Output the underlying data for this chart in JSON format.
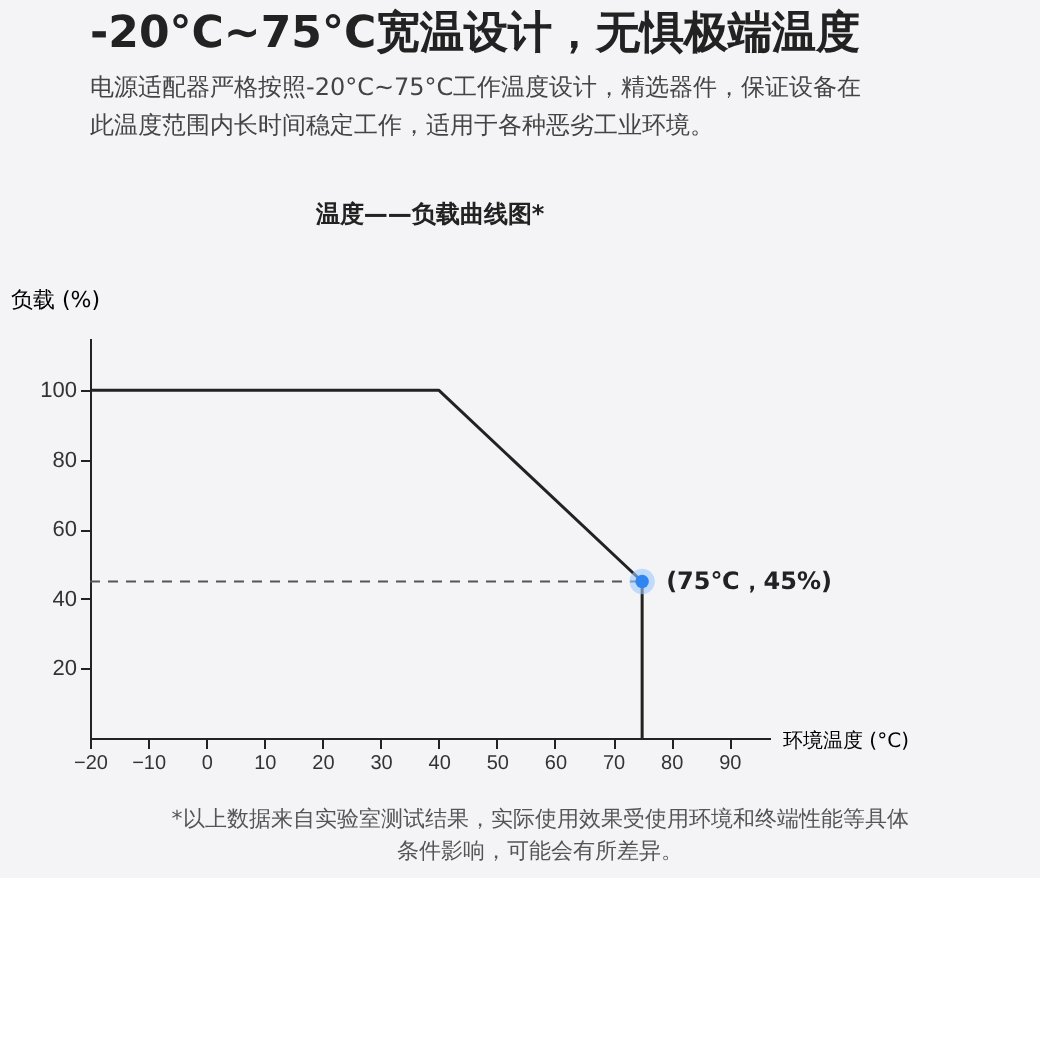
{
  "chart_data": {
    "type": "line",
    "title": "-20°C~75°C宽温设计，无惧极端温度",
    "subtitle": "电源适配器严格按照-20°C~75°C工作温度设计，精选器件，保证设备在此温度范围内长时间稳定工作，适用于各种恶劣工业环境。",
    "legend_title": "温度——负载曲线图*",
    "xlabel": "环境温度 (°C)",
    "ylabel": "负载 (%)",
    "x": [
      -20,
      40,
      75,
      75
    ],
    "series": [
      {
        "color": "#222222",
        "values": [
          100,
          100,
          45,
          0
        ]
      }
    ],
    "xlim": [
      -20,
      97
    ],
    "xticks": [
      -20,
      -10,
      0,
      10,
      20,
      30,
      40,
      50,
      60,
      70,
      80,
      90
    ],
    "ylim": [
      0,
      115
    ],
    "yticks": [
      20,
      40,
      60,
      80,
      100
    ],
    "grid": false,
    "marker": "none",
    "line_style": "solid",
    "ref_lines": [
      {
        "axis": "y",
        "value": 45,
        "color": "#555555",
        "line_style": "dashed"
      }
    ],
    "annotations": [
      {
        "text": "(75℃，45%)",
        "x": 75,
        "y": 45
      },
      "*以上数据来自实验室测试结果，实际使用效果受使用环境和终端性能等具体条件影响，可能会有所差异。"
    ]
  }
}
